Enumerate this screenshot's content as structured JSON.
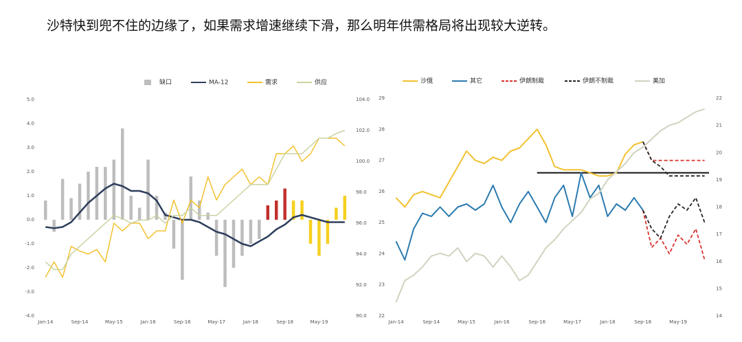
{
  "caption": "沙特快到兜不住的边缘了，如果需求增速继续下滑，那么明年供需格局将出现较大逆转。",
  "chart_data": [
    {
      "type": "line",
      "categories": [
        "Jan-14",
        null,
        null,
        null,
        "Sep-14",
        null,
        null,
        null,
        "May-15",
        null,
        null,
        null,
        "Jan-16",
        null,
        null,
        null,
        "Sep-16",
        null,
        null,
        null,
        "May-17",
        null,
        null,
        null,
        "Jan-18",
        null,
        null,
        null,
        "Sep-18",
        null,
        null,
        null,
        "May-19",
        null,
        null,
        null
      ],
      "ylim": [
        -4,
        5
      ],
      "yticks": [
        {
          "value": -4,
          "label": "-4.0"
        },
        {
          "value": -3,
          "label": "-3.0"
        },
        {
          "value": -2,
          "label": "-2.0"
        },
        {
          "value": -1,
          "label": "-1.0"
        },
        {
          "value": 0,
          "label": "0.0"
        },
        {
          "value": 1,
          "label": "1.0"
        },
        {
          "value": 2,
          "label": "2.0"
        },
        {
          "value": 3,
          "label": "3.0"
        },
        {
          "value": 4,
          "label": "4.0"
        },
        {
          "value": 5,
          "label": "5.0"
        }
      ],
      "y2lim": [
        90,
        104
      ],
      "y2ticks": [
        {
          "value": 90,
          "label": "90.0"
        },
        {
          "value": 92,
          "label": "92.0"
        },
        {
          "value": 94,
          "label": "94.0"
        },
        {
          "value": 96,
          "label": "96.0"
        },
        {
          "value": 98,
          "label": "98.0"
        },
        {
          "value": 100,
          "label": "100.0"
        },
        {
          "value": 102,
          "label": "102.0"
        },
        {
          "value": 104,
          "label": "104.0"
        }
      ],
      "series": [
        {
          "name": "缺口",
          "type": "bar",
          "color": "#bdbdbd",
          "colors": [
            "#bdbdbd",
            "#bdbdbd",
            "#bdbdbd",
            "#bdbdbd",
            "#bdbdbd",
            "#bdbdbd",
            "#bdbdbd",
            "#bdbdbd",
            "#bdbdbd",
            "#bdbdbd",
            "#bdbdbd",
            "#bdbdbd",
            "#bdbdbd",
            "#bdbdbd",
            "#bdbdbd",
            "#bdbdbd",
            "#bdbdbd",
            "#bdbdbd",
            "#bdbdbd",
            "#bdbdbd",
            "#bdbdbd",
            "#bdbdbd",
            "#bdbdbd",
            "#bdbdbd",
            "#bdbdbd",
            "#bdbdbd",
            "#c0302c",
            "#c0302c",
            "#c0302c",
            "#f5d020",
            "#f5d020",
            "#f5d020",
            "#f5d020",
            "#f5d020",
            "#f5d020",
            "#f5d020"
          ],
          "values": [
            0.8,
            -0.5,
            1.7,
            0.9,
            1.5,
            2.0,
            2.2,
            2.2,
            2.5,
            3.8,
            1.0,
            0.5,
            2.5,
            1.0,
            0.3,
            -1.2,
            -2.5,
            1.8,
            0.8,
            0.3,
            -1.5,
            -2.8,
            -2.0,
            -1.5,
            -1.0,
            -0.8,
            0.6,
            0.8,
            1.3,
            0.8,
            0.8,
            -1.0,
            -1.5,
            -1.0,
            0.5,
            1.0
          ]
        },
        {
          "name": "MA-12",
          "color": "#2e3f5c",
          "width": 2.5,
          "values": [
            -0.3,
            -0.35,
            -0.3,
            -0.1,
            0.3,
            0.7,
            1.0,
            1.3,
            1.5,
            1.4,
            1.2,
            1.2,
            1.1,
            0.8,
            0.2,
            0.1,
            0.0,
            0.0,
            -0.1,
            -0.3,
            -0.5,
            -0.6,
            -0.8,
            -1.0,
            -1.1,
            -0.9,
            -0.7,
            -0.4,
            -0.2,
            0.1,
            0.2,
            0.1,
            0.0,
            -0.1,
            -0.1,
            -0.1
          ]
        },
        {
          "name": "需求",
          "color": "#f2c12e",
          "axis": "y2",
          "width": 1.5,
          "values": [
            92.5,
            93.5,
            92.5,
            94.5,
            94.2,
            94.0,
            94.3,
            93.5,
            96.0,
            95.5,
            96.0,
            96.0,
            95.0,
            95.5,
            95.5,
            97.5,
            96.0,
            97.5,
            97.0,
            99.0,
            97.5,
            98.5,
            99.0,
            99.5,
            98.5,
            99.0,
            98.5,
            100.5,
            100.5,
            101.0,
            100.0,
            100.5,
            101.5,
            101.5,
            101.5,
            101.0
          ]
        },
        {
          "name": "供应",
          "color": "#c8d3a0",
          "axis": "y2",
          "width": 1.5,
          "values": [
            93.5,
            93.0,
            93.0,
            94.0,
            94.5,
            95.0,
            95.5,
            96.0,
            96.5,
            96.3,
            96.0,
            96.2,
            96.2,
            96.5,
            96.0,
            96.5,
            96.5,
            97.0,
            96.5,
            96.5,
            96.5,
            97.0,
            97.5,
            98.0,
            98.5,
            98.5,
            98.5,
            99.5,
            100.5,
            100.5,
            100.5,
            101.0,
            101.5,
            101.5,
            101.8,
            102.0
          ]
        }
      ]
    },
    {
      "type": "line",
      "categories": [
        "Jan-14",
        null,
        null,
        null,
        "Sep-14",
        null,
        null,
        null,
        "May-15",
        null,
        null,
        null,
        "Jan-16",
        null,
        null,
        null,
        "Sep-16",
        null,
        null,
        null,
        "May-17",
        null,
        null,
        null,
        "Jan-18",
        null,
        null,
        null,
        "Sep-18",
        null,
        null,
        null,
        "May-19",
        null,
        null,
        null
      ],
      "ylim": [
        22,
        29
      ],
      "yticks": [
        22,
        23,
        24,
        25,
        26,
        27,
        28,
        29
      ],
      "y2lim": [
        14,
        22
      ],
      "y2ticks": [
        14,
        15,
        16,
        17,
        18,
        19,
        20,
        21,
        22
      ],
      "hline": 26.6,
      "series": [
        {
          "name": "沙俄",
          "color": "#f2c12e",
          "width": 2,
          "values": [
            25.8,
            25.5,
            25.9,
            26.0,
            25.9,
            25.8,
            26.3,
            26.8,
            27.3,
            27.0,
            26.9,
            27.1,
            27.0,
            27.3,
            27.4,
            27.7,
            28.0,
            27.5,
            26.8,
            26.7,
            26.7,
            26.7,
            26.6,
            26.5,
            26.5,
            26.6,
            27.2,
            27.5,
            27.6,
            null,
            null,
            null,
            null,
            null,
            null,
            null
          ]
        },
        {
          "name": "其它",
          "color": "#2a7ab0",
          "width": 2,
          "values": [
            24.4,
            23.8,
            24.8,
            25.3,
            25.2,
            25.5,
            25.2,
            25.5,
            25.6,
            25.4,
            25.6,
            26.2,
            25.5,
            25.0,
            25.6,
            26.0,
            25.5,
            25.0,
            25.8,
            26.2,
            25.2,
            26.6,
            25.8,
            26.2,
            25.2,
            25.6,
            25.4,
            25.8,
            25.4,
            null,
            null,
            null,
            null,
            null,
            null,
            null
          ]
        },
        {
          "name": "伊朗制裁",
          "color": "#d9302c",
          "dash": true,
          "width": 1.8,
          "values": [
            null,
            null,
            null,
            null,
            null,
            null,
            null,
            null,
            null,
            null,
            null,
            null,
            null,
            null,
            null,
            null,
            null,
            null,
            null,
            null,
            null,
            null,
            null,
            null,
            null,
            null,
            null,
            null,
            27.6,
            27.0,
            27.0,
            27.0,
            27.0,
            27.0,
            27.0,
            27.0
          ],
          "values_b": [
            null,
            null,
            null,
            null,
            null,
            null,
            null,
            null,
            null,
            null,
            null,
            null,
            null,
            null,
            null,
            null,
            null,
            null,
            null,
            null,
            null,
            null,
            null,
            null,
            null,
            null,
            null,
            null,
            25.4,
            24.2,
            24.5,
            24.0,
            24.6,
            24.3,
            24.8,
            23.8
          ]
        },
        {
          "name": "伊朗不制裁",
          "color": "#222222",
          "dash": true,
          "width": 1.8,
          "values": [
            null,
            null,
            null,
            null,
            null,
            null,
            null,
            null,
            null,
            null,
            null,
            null,
            null,
            null,
            null,
            null,
            null,
            null,
            null,
            null,
            null,
            null,
            null,
            null,
            null,
            null,
            null,
            null,
            27.6,
            27.0,
            26.8,
            26.5,
            26.5,
            26.5,
            26.5,
            26.5
          ],
          "values_b": [
            null,
            null,
            null,
            null,
            null,
            null,
            null,
            null,
            null,
            null,
            null,
            null,
            null,
            null,
            null,
            null,
            null,
            null,
            null,
            null,
            null,
            null,
            null,
            null,
            null,
            null,
            null,
            null,
            25.4,
            24.8,
            24.5,
            25.2,
            25.6,
            25.4,
            25.8,
            25.0
          ]
        },
        {
          "name": "美加",
          "color": "#cfd3bf",
          "axis": "y2",
          "width": 2,
          "values": [
            14.5,
            15.3,
            15.5,
            15.8,
            16.2,
            16.3,
            16.2,
            16.5,
            16.0,
            16.3,
            16.2,
            15.8,
            16.2,
            15.8,
            15.3,
            15.5,
            16.0,
            16.5,
            16.8,
            17.2,
            17.5,
            17.8,
            18.3,
            18.5,
            19.0,
            19.3,
            19.6,
            20.0,
            20.2,
            20.5,
            20.8,
            21.0,
            21.1,
            21.3,
            21.5,
            21.6
          ]
        }
      ]
    }
  ]
}
